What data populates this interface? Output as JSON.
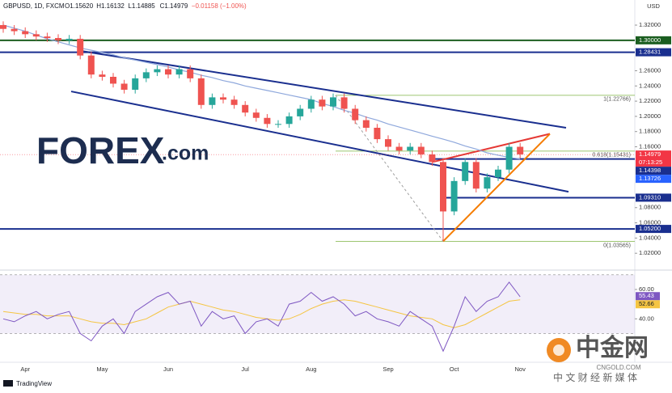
{
  "chart_data": {
    "type": "candlestick",
    "title": "GBPUSD, 1D, FXCM",
    "header_values": [
      "O1.15620",
      "H1.16132",
      "L1.14885",
      "C1.14979",
      "−0.01158 (−1.00%)"
    ],
    "axis_unit": "USD",
    "categories": [
      null,
      null,
      "Apr",
      null,
      null,
      null,
      null,
      null,
      null,
      "May",
      null,
      null,
      null,
      null,
      null,
      "Jun",
      null,
      null,
      null,
      null,
      null,
      null,
      "Jul",
      null,
      null,
      null,
      null,
      null,
      "Aug",
      null,
      null,
      null,
      null,
      null,
      null,
      "Sep",
      null,
      null,
      null,
      null,
      null,
      "Oct",
      null,
      null,
      null,
      null,
      null,
      "Nov"
    ],
    "open": [
      1.32,
      1.315,
      1.312,
      1.308,
      1.305,
      1.303,
      1.3,
      1.302,
      1.28,
      1.255,
      1.252,
      1.243,
      1.235,
      1.25,
      1.258,
      1.262,
      1.255,
      1.262,
      1.25,
      1.215,
      1.225,
      1.222,
      1.215,
      1.205,
      1.198,
      1.19,
      1.19,
      1.2,
      1.21,
      1.222,
      1.213,
      1.225,
      1.21,
      1.195,
      1.185,
      1.17,
      1.16,
      1.155,
      1.16,
      1.15,
      1.14,
      1.075,
      1.115,
      1.14,
      1.105,
      1.12,
      1.13,
      1.16
    ],
    "high": [
      1.325,
      1.32,
      1.317,
      1.313,
      1.31,
      1.308,
      1.307,
      1.307,
      1.285,
      1.26,
      1.257,
      1.248,
      1.255,
      1.263,
      1.267,
      1.267,
      1.267,
      1.267,
      1.255,
      1.23,
      1.23,
      1.227,
      1.22,
      1.21,
      1.203,
      1.195,
      1.205,
      1.215,
      1.227,
      1.227,
      1.23,
      1.23,
      1.215,
      1.2,
      1.19,
      1.175,
      1.165,
      1.165,
      1.165,
      1.155,
      1.145,
      1.12,
      1.145,
      1.145,
      1.125,
      1.135,
      1.165,
      1.165
    ],
    "low": [
      1.31,
      1.307,
      1.303,
      1.3,
      1.298,
      1.295,
      1.295,
      1.275,
      1.25,
      1.247,
      1.238,
      1.23,
      1.23,
      1.245,
      1.253,
      1.25,
      1.25,
      1.245,
      1.21,
      1.21,
      1.217,
      1.21,
      1.2,
      1.193,
      1.185,
      1.185,
      1.185,
      1.195,
      1.205,
      1.208,
      1.208,
      1.205,
      1.19,
      1.18,
      1.165,
      1.155,
      1.15,
      1.15,
      1.145,
      1.135,
      1.0357,
      1.07,
      1.11,
      1.1,
      1.1,
      1.115,
      1.125,
      1.145
    ],
    "close": [
      1.315,
      1.312,
      1.308,
      1.305,
      1.303,
      1.3,
      1.302,
      1.28,
      1.255,
      1.252,
      1.243,
      1.235,
      1.25,
      1.258,
      1.262,
      1.255,
      1.262,
      1.25,
      1.215,
      1.225,
      1.222,
      1.215,
      1.205,
      1.198,
      1.19,
      1.19,
      1.2,
      1.21,
      1.222,
      1.213,
      1.225,
      1.21,
      1.195,
      1.185,
      1.17,
      1.16,
      1.155,
      1.16,
      1.15,
      1.14,
      1.075,
      1.115,
      1.14,
      1.105,
      1.12,
      1.13,
      1.16,
      1.15
    ],
    "up_color": "#26a69a",
    "down_color": "#ef5350",
    "ma": {
      "color": "#8fa8dc",
      "values": [
        1.32,
        1.316,
        1.312,
        1.307,
        1.302,
        1.298,
        1.294,
        1.29,
        1.287,
        1.284,
        1.281,
        1.277,
        1.274,
        1.271,
        1.268,
        1.265,
        1.261,
        1.258,
        1.254,
        1.251,
        1.247,
        1.244,
        1.24,
        1.237,
        1.234,
        1.231,
        1.228,
        1.225,
        1.222,
        1.217,
        1.213,
        1.208,
        1.204,
        1.199,
        1.195,
        1.19,
        1.186,
        1.182,
        1.178,
        1.174,
        1.17,
        1.166,
        1.161,
        1.157,
        1.152,
        1.149,
        1.146,
        1.144
      ]
    },
    "ylim": [
      1.0,
      1.353
    ],
    "yticks": [
      {
        "value": 1.32,
        "label": "1.32000"
      },
      {
        "value": 1.26,
        "label": "1.26000"
      },
      {
        "value": 1.24,
        "label": "1.24000"
      },
      {
        "value": 1.22,
        "label": "1.22000"
      },
      {
        "value": 1.2,
        "label": "1.20000"
      },
      {
        "value": 1.18,
        "label": "1.18000"
      },
      {
        "value": 1.16,
        "label": "1.16000"
      },
      {
        "value": 1.08,
        "label": "1.08000"
      },
      {
        "value": 1.06,
        "label": "1.06000"
      },
      {
        "value": 1.04,
        "label": "1.04000"
      },
      {
        "value": 1.02,
        "label": "1.02000"
      }
    ],
    "levels": [
      {
        "value": 1.3,
        "label": "1.30000",
        "color": "#1b5e20"
      },
      {
        "value": 1.28431,
        "label": "1.28431",
        "color": "#1a2f8f"
      },
      {
        "value": 1.14398,
        "label": "1.14398",
        "color": "#1a2f8f"
      },
      {
        "value": 1.0931,
        "label": "1.09310",
        "color": "#1a2f8f"
      },
      {
        "value": 1.052,
        "label": "1.05200",
        "color": "#1a2f8f"
      }
    ],
    "price_tag": {
      "value": 1.14979,
      "label": "1.14979",
      "countdown": "07:13:25",
      "color": "#f23645"
    },
    "extra_tags": [
      {
        "value": 1.13726,
        "label": "1.13726",
        "color": "#2962ff"
      }
    ],
    "trendlines": [
      {
        "values": [
          1.286,
          1.185
        ],
        "color": "#1a2f8f"
      },
      {
        "values": [
          1.2328,
          1.1009
        ],
        "color": "#1a2f8f"
      },
      {
        "values": [
          1.14,
          1.177
        ],
        "color": "#e53935"
      },
      {
        "values": [
          1.0357,
          1.177
        ],
        "color": "#f57c00"
      },
      {
        "values": [
          1.2277,
          1.0357
        ],
        "color": "#9e9e9e"
      }
    ],
    "fib": {
      "color": "#7cb342",
      "levels": [
        {
          "value": 1.22766,
          "label": "1(1.22766)"
        },
        {
          "value": 1.15431,
          "label": "0.618(1.15431)"
        },
        {
          "value": 1.03565,
          "label": "0(1.03565)"
        }
      ]
    },
    "rsi": {
      "ylim": [
        11.5,
        71
      ],
      "yticks": [
        {
          "value": 60,
          "label": "60.00"
        },
        {
          "value": 40,
          "label": "40.00"
        }
      ],
      "band": [
        30,
        70
      ],
      "color": "#7e57c2",
      "ma_color": "#f5c542",
      "values": [
        40,
        38,
        42,
        45,
        40,
        43,
        45,
        30,
        25,
        35,
        40,
        30,
        45,
        50,
        55,
        58,
        50,
        52,
        35,
        45,
        40,
        42,
        30,
        38,
        40,
        35,
        50,
        52,
        58,
        52,
        55,
        50,
        42,
        45,
        40,
        38,
        35,
        45,
        40,
        35,
        18,
        35,
        55,
        45,
        52,
        55,
        65,
        55
      ],
      "ma_values": [
        45,
        44,
        43,
        43,
        42,
        42,
        42,
        40,
        38,
        37,
        37,
        36,
        38,
        40,
        44,
        48,
        50,
        52,
        50,
        48,
        46,
        45,
        43,
        41,
        40,
        39,
        40,
        43,
        47,
        50,
        52,
        53,
        52,
        50,
        48,
        46,
        44,
        42,
        41,
        40,
        36,
        34,
        36,
        40,
        44,
        48,
        52,
        53
      ],
      "tags": [
        {
          "value": 55.43,
          "label": "55.43",
          "color": "#7e57c2"
        },
        {
          "value": 52.66,
          "label": "52.66",
          "color": "#f5c542"
        }
      ]
    }
  },
  "branding": {
    "forex": "FOREX",
    "forex_suffix": ".com",
    "cngold": "中金网",
    "cngold_url": "CNGOLD.COM",
    "cngold_sub": "中 文 财 经 新 媒 体",
    "tradingview": "TradingView"
  }
}
